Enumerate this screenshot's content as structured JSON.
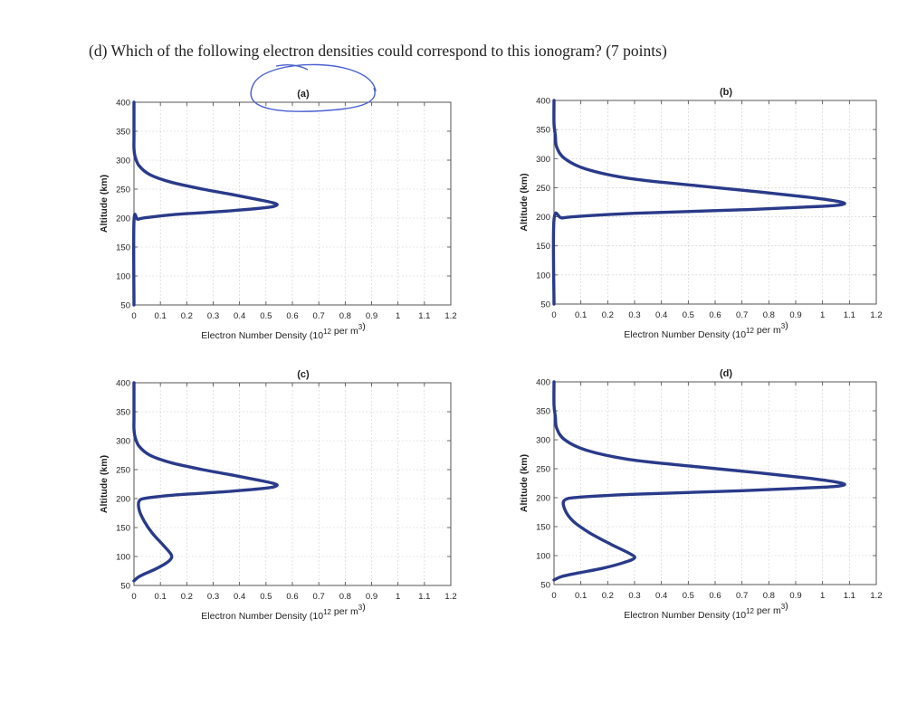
{
  "question": "(d) Which of the following electron densities could correspond to this ionogram? (7 points)",
  "colors": {
    "curve": "#2a3a8a",
    "annotation": "#4a5fd0"
  },
  "chart_data": [
    {
      "type": "line",
      "title": "(a)",
      "xlabel": "Electron Number Density (10",
      "xlabel_sup": "12",
      "xlabel_tail": " per m",
      "xlabel_sup2": "3",
      "xlabel_end": ")",
      "ylabel": "Altitude (km)",
      "xlim": [
        0,
        1.2
      ],
      "ylim": [
        50,
        400
      ],
      "xticks": [
        "0",
        "0.1",
        "0.2",
        "0.3",
        "0.4",
        "0.5",
        "0.6",
        "0.7",
        "0.8",
        "0.9",
        "1",
        "1.1",
        "1.2"
      ],
      "yticks": [
        "50",
        "100",
        "150",
        "200",
        "250",
        "300",
        "350",
        "400"
      ],
      "grid": true,
      "series": [
        {
          "x": [
            0,
            0,
            0,
            0.005,
            0.02,
            0.06,
            0.14,
            0.26,
            0.38,
            0.47,
            0.53,
            0.54,
            0.5,
            0.35,
            0.15,
            0.05,
            0.015,
            0,
            0
          ],
          "y": [
            400,
            340,
            320,
            305,
            290,
            275,
            262,
            250,
            240,
            232,
            226,
            222,
            218,
            212,
            206,
            201,
            198,
            195,
            50
          ]
        }
      ],
      "circled": true
    },
    {
      "type": "line",
      "title": "(b)",
      "xlabel": "Electron Number Density (10",
      "xlabel_sup": "12",
      "xlabel_tail": " per m",
      "xlabel_sup2": "3",
      "xlabel_end": ")",
      "ylabel": "Altitude (km)",
      "xlim": [
        0,
        1.2
      ],
      "ylim": [
        50,
        400
      ],
      "xticks": [
        "0",
        "0.1",
        "0.2",
        "0.3",
        "0.4",
        "0.5",
        "0.6",
        "0.7",
        "0.8",
        "0.9",
        "1",
        "1.1",
        "1.2"
      ],
      "yticks": [
        "50",
        "100",
        "150",
        "200",
        "250",
        "300",
        "350",
        "400"
      ],
      "grid": true,
      "series": [
        {
          "x": [
            0,
            0,
            0.005,
            0.01,
            0.04,
            0.12,
            0.28,
            0.52,
            0.76,
            0.94,
            1.05,
            1.08,
            1.0,
            0.7,
            0.3,
            0.1,
            0.03,
            0,
            0
          ],
          "y": [
            400,
            360,
            340,
            320,
            300,
            282,
            266,
            254,
            243,
            234,
            227,
            222,
            218,
            212,
            206,
            201,
            198,
            195,
            50
          ]
        }
      ],
      "circled": false
    },
    {
      "type": "line",
      "title": "(c)",
      "xlabel": "Electron Number Density (10",
      "xlabel_sup": "12",
      "xlabel_tail": " per m",
      "xlabel_sup2": "3",
      "xlabel_end": ")",
      "ylabel": "Altitude (km)",
      "xlim": [
        0,
        1.2
      ],
      "ylim": [
        50,
        400
      ],
      "xticks": [
        "0",
        "0.1",
        "0.2",
        "0.3",
        "0.4",
        "0.5",
        "0.6",
        "0.7",
        "0.8",
        "0.9",
        "1",
        "1.1",
        "1.2"
      ],
      "yticks": [
        "50",
        "100",
        "150",
        "200",
        "250",
        "300",
        "350",
        "400"
      ],
      "grid": true,
      "series": [
        {
          "x": [
            0,
            0,
            0,
            0.005,
            0.02,
            0.06,
            0.14,
            0.26,
            0.38,
            0.47,
            0.53,
            0.54,
            0.5,
            0.35,
            0.15,
            0.05,
            0.02,
            0.02,
            0.04,
            0.07,
            0.11,
            0.14,
            0.14,
            0.12,
            0.08,
            0.04,
            0.015,
            0
          ],
          "y": [
            400,
            340,
            320,
            305,
            290,
            275,
            262,
            250,
            240,
            232,
            226,
            222,
            218,
            212,
            206,
            201,
            196,
            180,
            160,
            140,
            120,
            104,
            96,
            88,
            78,
            70,
            64,
            58
          ]
        }
      ],
      "circled": false
    },
    {
      "type": "line",
      "title": "(d)",
      "xlabel": "Electron Number Density (10",
      "xlabel_sup": "12",
      "xlabel_tail": " per m",
      "xlabel_sup2": "3",
      "xlabel_end": ")",
      "ylabel": "Altitude (km)",
      "xlim": [
        0,
        1.2
      ],
      "ylim": [
        50,
        400
      ],
      "xticks": [
        "0",
        "0.1",
        "0.2",
        "0.3",
        "0.4",
        "0.5",
        "0.6",
        "0.7",
        "0.8",
        "0.9",
        "1",
        "1.1",
        "1.2"
      ],
      "yticks": [
        "50",
        "100",
        "150",
        "200",
        "250",
        "300",
        "350",
        "400"
      ],
      "grid": true,
      "series": [
        {
          "x": [
            0,
            0,
            0.005,
            0.01,
            0.04,
            0.12,
            0.28,
            0.52,
            0.76,
            0.94,
            1.05,
            1.08,
            1.0,
            0.7,
            0.3,
            0.1,
            0.04,
            0.04,
            0.07,
            0.13,
            0.21,
            0.28,
            0.3,
            0.26,
            0.18,
            0.09,
            0.03,
            0
          ],
          "y": [
            400,
            360,
            340,
            320,
            300,
            282,
            266,
            254,
            243,
            234,
            227,
            222,
            218,
            212,
            206,
            201,
            196,
            180,
            160,
            140,
            120,
            104,
            96,
            88,
            78,
            70,
            64,
            58
          ]
        }
      ],
      "circled": false
    }
  ]
}
